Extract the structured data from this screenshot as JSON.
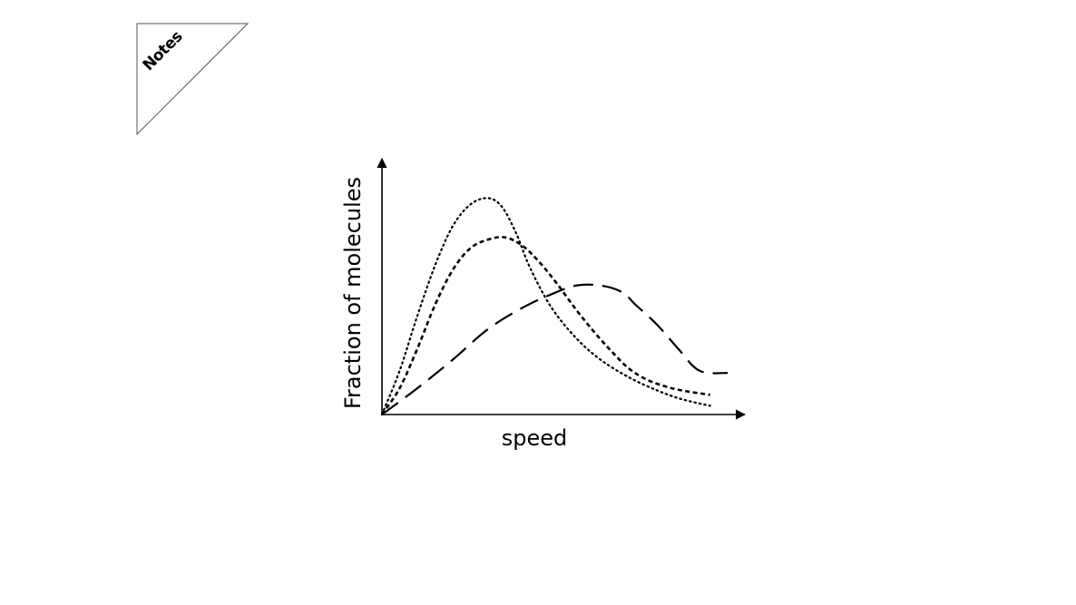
{
  "notes_tab": {
    "label": "Notes",
    "icon": "notes-tab-icon"
  },
  "chart_data": {
    "type": "line",
    "title": "",
    "xlabel": "speed",
    "ylabel": "Fraction of molecules",
    "xlim": [
      0,
      100
    ],
    "ylim": [
      0,
      100
    ],
    "grid": false,
    "legend": "none",
    "axis_ticks": false,
    "series": [
      {
        "line_style": "dotted",
        "color": "#000000",
        "x": [
          0,
          5,
          10,
          15,
          20,
          25,
          30,
          34,
          38,
          42,
          48,
          55,
          62,
          70,
          78,
          85,
          93
        ],
        "y": [
          0,
          20,
          45,
          68,
          86,
          96,
          99,
          95,
          83,
          67,
          49,
          35,
          25,
          17,
          11,
          7,
          4
        ]
      },
      {
        "line_style": "dashed",
        "color": "#000000",
        "x": [
          0,
          5,
          10,
          15,
          20,
          25,
          30,
          35,
          40,
          45,
          50,
          55,
          60,
          65,
          70,
          75,
          80,
          85,
          93
        ],
        "y": [
          0,
          12,
          30,
          50,
          66,
          76,
          80,
          81,
          77,
          69,
          59,
          48,
          38,
          29,
          21,
          16,
          13,
          11,
          9
        ]
      },
      {
        "line_style": "long-dashed",
        "color": "#000000",
        "x": [
          0,
          10,
          20,
          30,
          40,
          48,
          55,
          62,
          68,
          72,
          78,
          84,
          90,
          98
        ],
        "y": [
          0,
          12,
          25,
          39,
          49,
          55,
          59,
          59,
          56,
          50,
          41,
          30,
          20,
          19
        ]
      }
    ]
  }
}
